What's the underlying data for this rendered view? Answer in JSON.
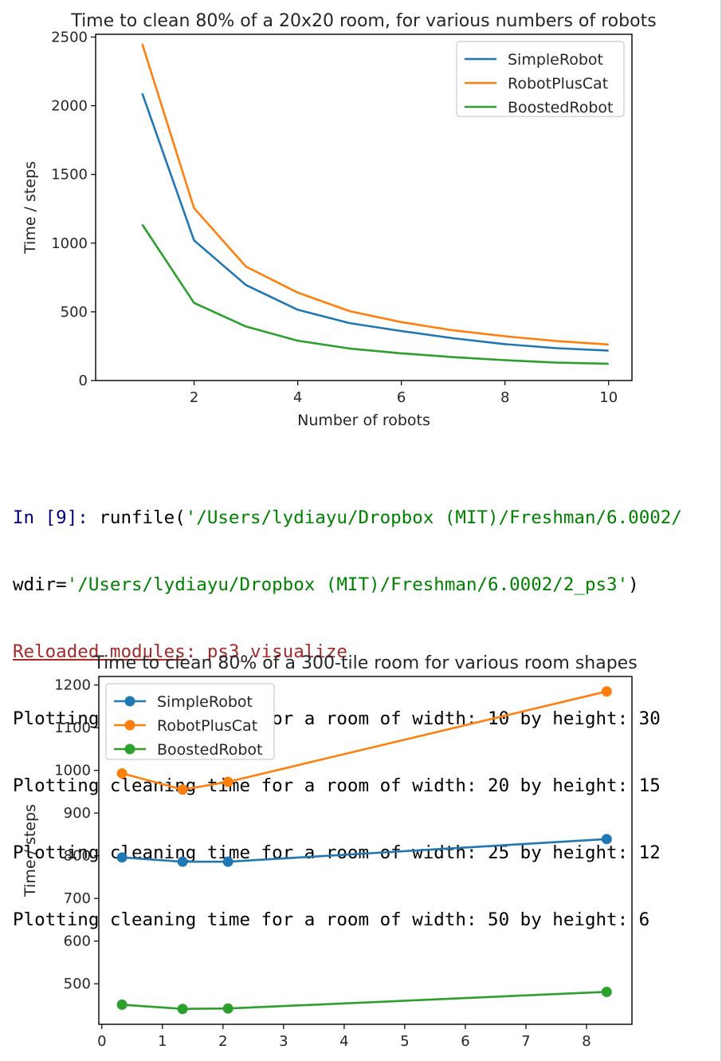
{
  "colors": {
    "SimpleRobot": "#1f77b4",
    "RobotPlusCat": "#ff7f0e",
    "BoostedRobot": "#2ca02c",
    "prompt": "#00007f",
    "string": "#008000",
    "reloaded": "#a52a2a"
  },
  "console": {
    "prompt": "In [9]:",
    "call_name": " runfile(",
    "arg1": "'/Users/lydiayu/Dropbox (MIT)/Freshman/6.0002/",
    "wdir_label": "wdir=",
    "wdir_value": "'/Users/lydiayu/Dropbox (MIT)/Freshman/6.0002/2_ps3'",
    "close_paren": ")",
    "reloaded_label": "Reloaded modules",
    "reloaded_sep": ": ",
    "reloaded_module": "ps3_visualize",
    "output_lines": [
      "Plotting cleaning time for a room of width: 10 by height: 30",
      "Plotting cleaning time for a room of width: 20 by height: 15",
      "Plotting cleaning time for a room of width: 25 by height: 12",
      "Plotting cleaning time for a room of width: 50 by height: 6"
    ]
  },
  "chart_data": [
    {
      "type": "line",
      "title": "Time to clean 80% of a 20x20 room, for various numbers of robots",
      "xlabel": "Number of robots",
      "ylabel": "Time / steps",
      "xlim": [
        0.1,
        10.45
      ],
      "ylim": [
        0,
        2520
      ],
      "xticks": [
        2,
        4,
        6,
        8,
        10
      ],
      "yticks": [
        0,
        500,
        1000,
        1500,
        2000,
        2500
      ],
      "markers": false,
      "legend": "top-right",
      "x": [
        1,
        2,
        3,
        4,
        5,
        6,
        7,
        8,
        9,
        10
      ],
      "series": [
        {
          "name": "SimpleRobot",
          "values": [
            2090,
            1020,
            695,
            515,
            418,
            360,
            308,
            265,
            235,
            218
          ]
        },
        {
          "name": "RobotPlusCat",
          "values": [
            2450,
            1255,
            830,
            640,
            505,
            425,
            365,
            322,
            287,
            262
          ]
        },
        {
          "name": "BoostedRobot",
          "values": [
            1135,
            565,
            393,
            290,
            233,
            198,
            170,
            148,
            130,
            122
          ]
        }
      ]
    },
    {
      "type": "line",
      "title": "Time to clean 80% of a 300-tile room for various room shapes",
      "xlabel": "",
      "ylabel": "Time / steps",
      "xlim": [
        -0.05,
        8.75
      ],
      "ylim": [
        405,
        1220
      ],
      "xticks": [
        0,
        1,
        2,
        3,
        4,
        5,
        6,
        7,
        8
      ],
      "yticks": [
        500,
        600,
        700,
        800,
        900,
        1000,
        1100,
        1200
      ],
      "markers": true,
      "legend": "top-left",
      "x": [
        0.333,
        1.333,
        2.083,
        8.333
      ],
      "series": [
        {
          "name": "SimpleRobot",
          "values": [
            796,
            786,
            786,
            839
          ]
        },
        {
          "name": "RobotPlusCat",
          "values": [
            993,
            955,
            973,
            1185
          ]
        },
        {
          "name": "BoostedRobot",
          "values": [
            451,
            441,
            442,
            481
          ]
        }
      ]
    }
  ]
}
